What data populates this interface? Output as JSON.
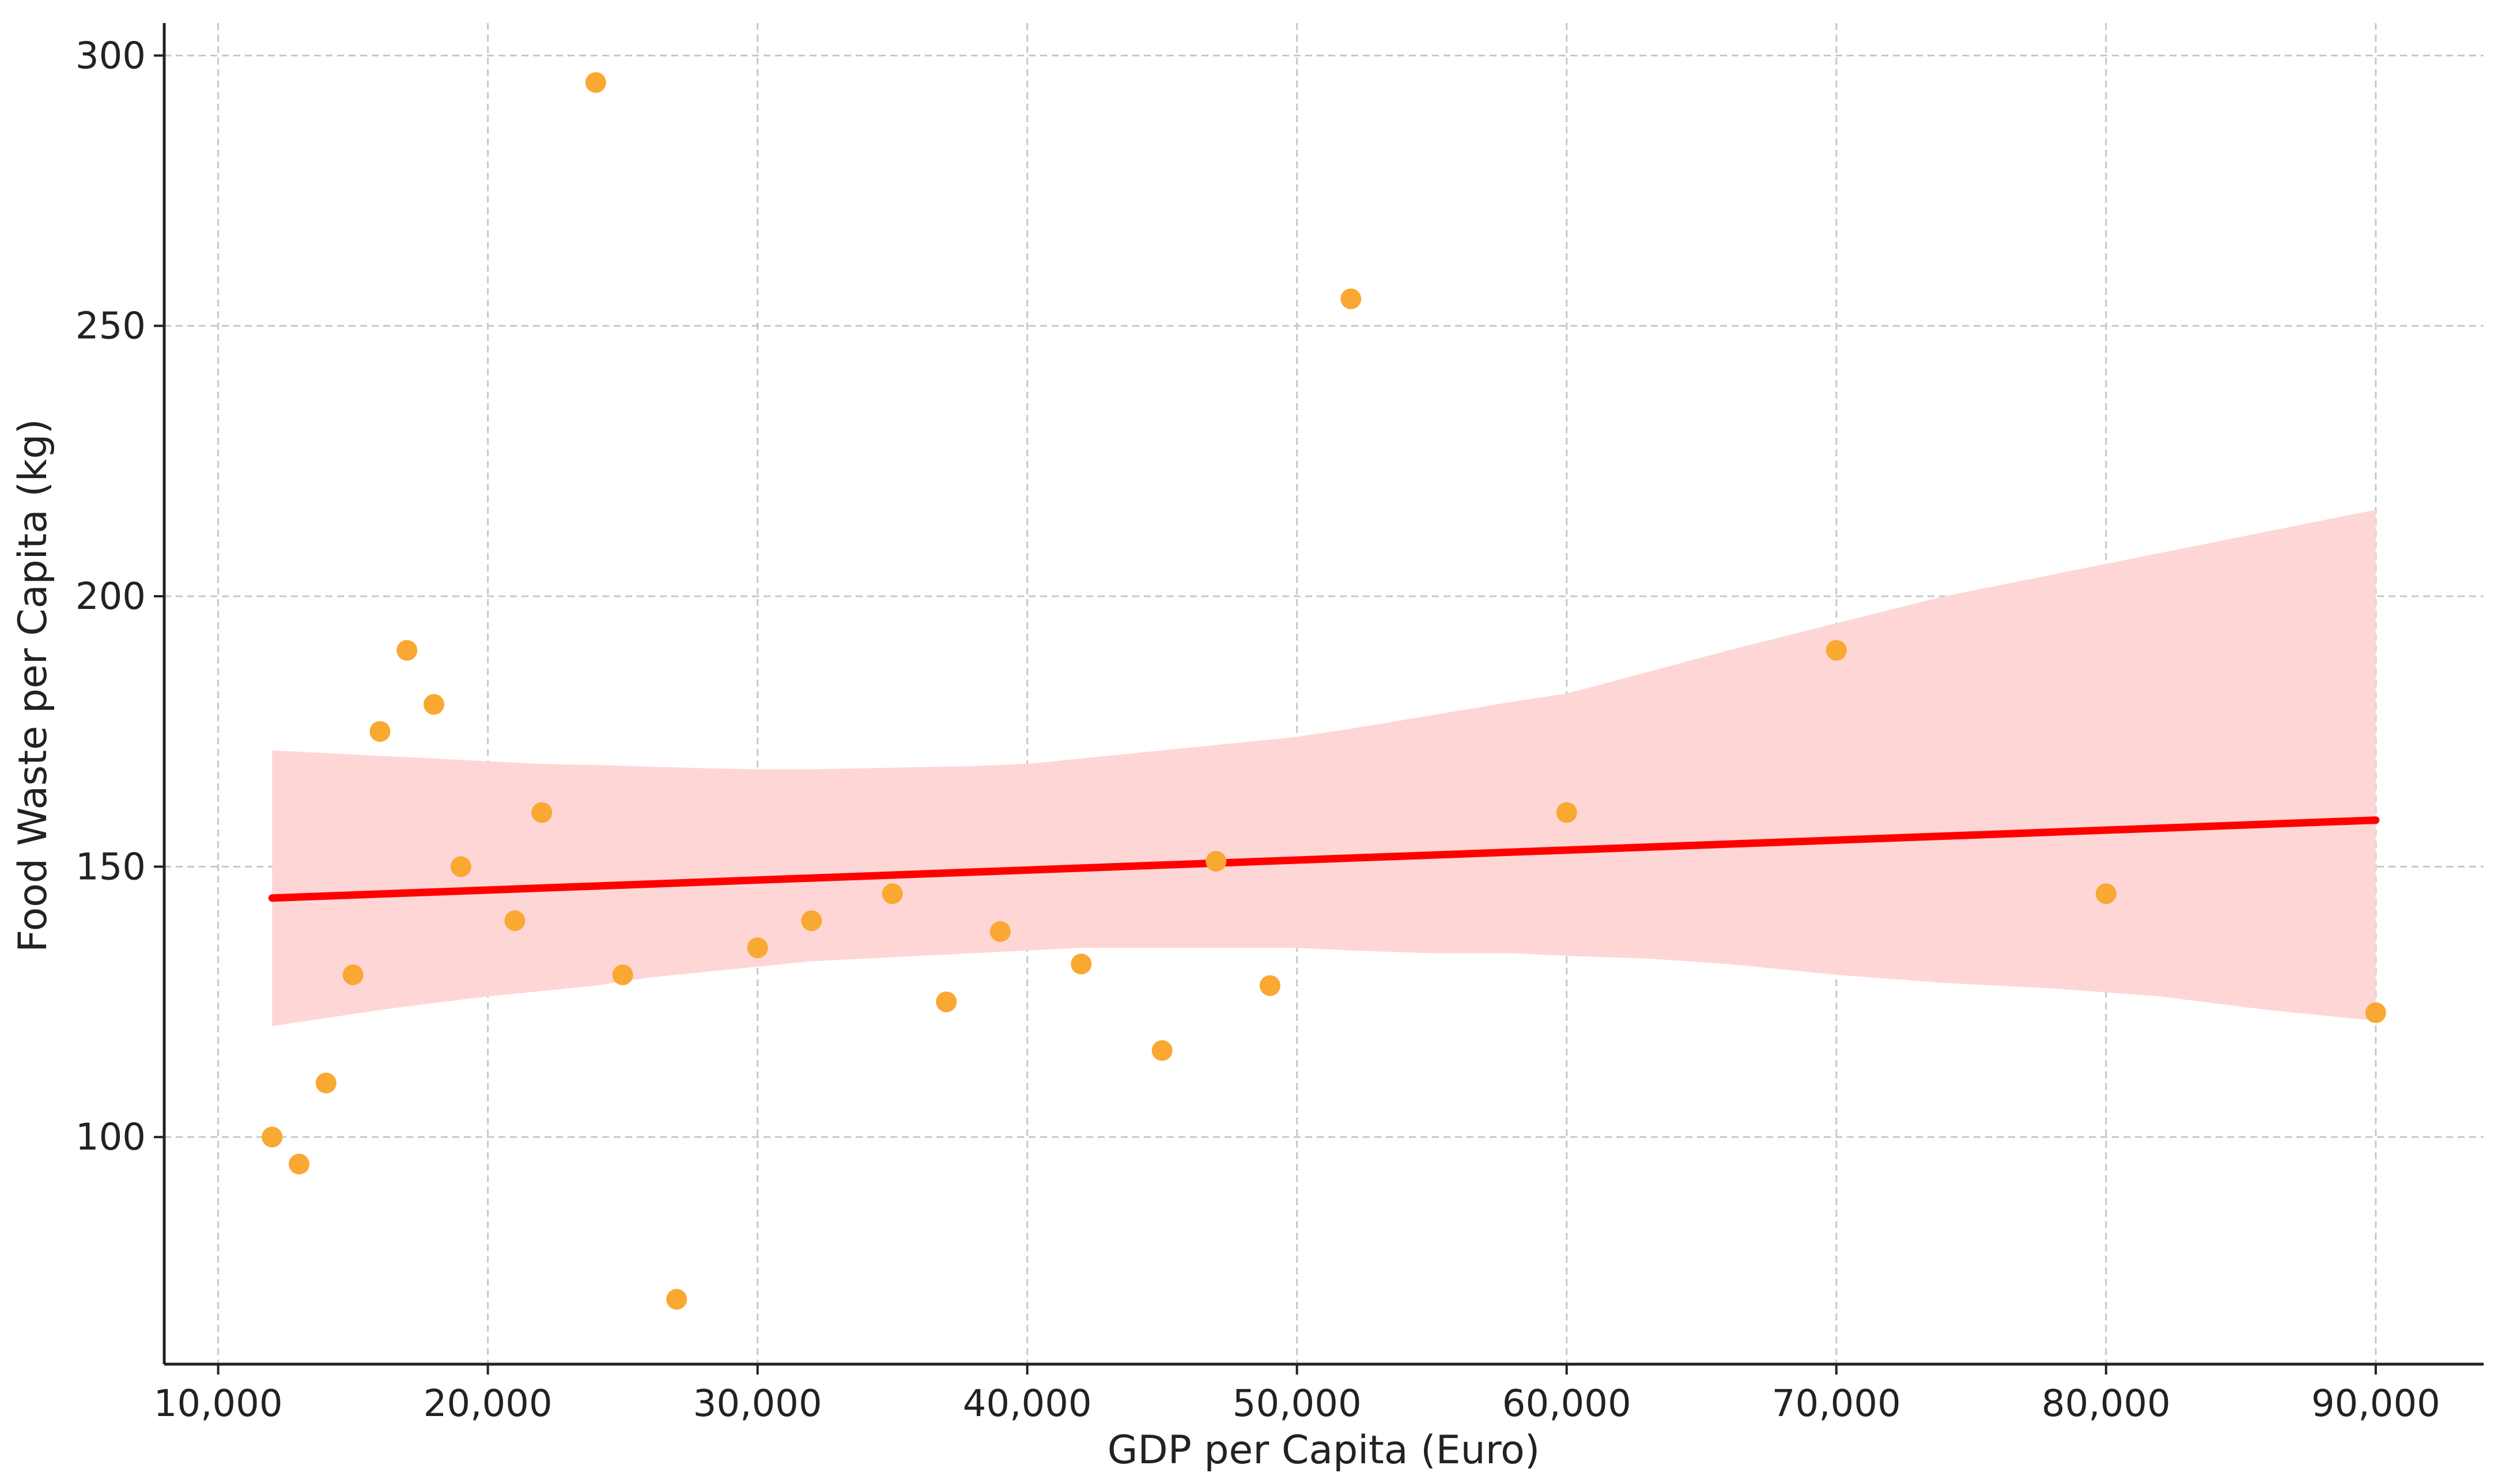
{
  "chart_data": {
    "type": "scatter",
    "title": "",
    "xlabel": "GDP per Capita (Euro)",
    "ylabel": "Food Waste per Capita (kg)",
    "xlim": [
      8000,
      94000
    ],
    "ylim": [
      58,
      306
    ],
    "x_ticks": [
      10000,
      20000,
      30000,
      40000,
      50000,
      60000,
      70000,
      80000,
      90000
    ],
    "x_tick_labels": [
      "10,000",
      "20,000",
      "30,000",
      "40,000",
      "50,000",
      "60,000",
      "70,000",
      "80,000",
      "90,000"
    ],
    "y_ticks": [
      100,
      150,
      200,
      250,
      300
    ],
    "y_tick_labels": [
      "100",
      "150",
      "200",
      "250",
      "300"
    ],
    "grid": true,
    "colors": {
      "points": "#f9a832",
      "line": "#ff0000",
      "band": "#ffd6d6",
      "grid": "#c8c8c8",
      "axis": "#222222"
    },
    "series": [
      {
        "type": "scatter",
        "x": [
          12000,
          13000,
          14000,
          15000,
          16000,
          17000,
          18000,
          19000,
          21000,
          22000,
          24000,
          25000,
          27000,
          30000,
          32000,
          35000,
          37000,
          39000,
          42000,
          45000,
          47000,
          49000,
          52000,
          60000,
          70000,
          80000,
          90000
        ],
        "y": [
          100,
          95,
          110,
          130,
          175,
          190,
          180,
          150,
          140,
          160,
          295,
          130,
          70,
          135,
          140,
          145,
          125,
          138,
          132,
          116,
          151,
          128,
          255,
          160,
          190,
          145,
          123
        ]
      },
      {
        "type": "line",
        "x": [
          12000,
          90000
        ],
        "y": [
          144.2,
          158.6
        ]
      },
      {
        "type": "area",
        "x": [
          12000,
          14000,
          16000,
          18000,
          20000,
          22000,
          24000,
          26000,
          28000,
          30000,
          32000,
          34000,
          36000,
          38000,
          40000,
          42000,
          44000,
          46000,
          48000,
          50000,
          52000,
          55000,
          58000,
          60000,
          63000,
          66000,
          70000,
          74000,
          78000,
          82000,
          86000,
          90000
        ],
        "lower": [
          120.5,
          122,
          123.5,
          124.8,
          126,
          127,
          128,
          129.5,
          130.5,
          131.5,
          132.5,
          133,
          133.5,
          134,
          134.5,
          135,
          135,
          135,
          135,
          135,
          134.5,
          134,
          134,
          133.5,
          133,
          132,
          130,
          128.5,
          127.5,
          126,
          123.5,
          121.5
        ],
        "upper": [
          171.5,
          171,
          170.5,
          170,
          169.5,
          169,
          168.8,
          168.5,
          168.2,
          168,
          168,
          168.2,
          168.4,
          168.6,
          169,
          170,
          171,
          172,
          173,
          174,
          175.5,
          178,
          180.5,
          182,
          186,
          190,
          195,
          200,
          204,
          208,
          212,
          216
        ]
      }
    ]
  }
}
